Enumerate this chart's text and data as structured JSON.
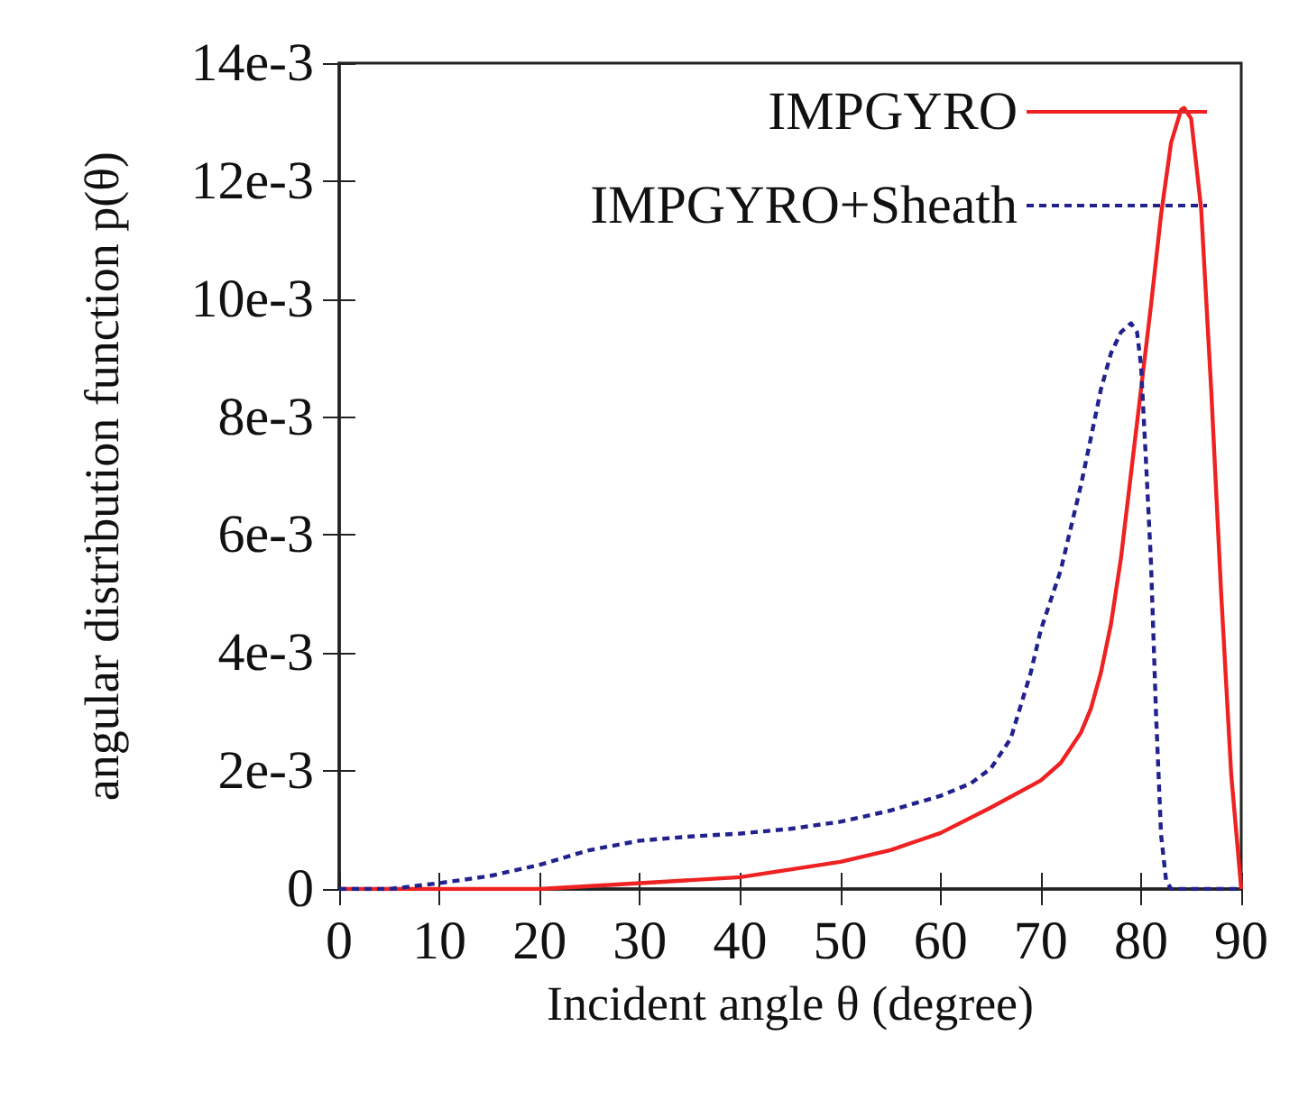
{
  "chart_data": {
    "type": "line",
    "xlabel": "Incident angle θ (degree)",
    "ylabel": "angular distribution function p(θ)",
    "xlim": [
      0,
      90
    ],
    "xticks": [
      0,
      10,
      20,
      30,
      40,
      50,
      60,
      70,
      80,
      90
    ],
    "ylim": [
      0,
      0.014
    ],
    "yticks": [
      0,
      {
        "value": 0.002,
        "label": "2e-3"
      },
      {
        "value": 0.004,
        "label": "4e-3"
      },
      {
        "value": 0.006,
        "label": "6e-3"
      },
      {
        "value": 0.008,
        "label": "8e-3"
      },
      {
        "value": 0.01,
        "label": "10e-3"
      },
      {
        "value": 0.012,
        "label": "12e-3"
      },
      {
        "value": 0.014,
        "label": "14e-3"
      }
    ],
    "grid": false,
    "legend": "top right",
    "marker": "none",
    "series": [
      {
        "name": "IMPGYRO",
        "color": "#ee2222",
        "line_style": "solid",
        "x": [
          0,
          20,
          30,
          40,
          50,
          55,
          60,
          65,
          70,
          72,
          74,
          75,
          76,
          77,
          78,
          79,
          80,
          81,
          82,
          83,
          84,
          84.3,
          85,
          86,
          87,
          88,
          89,
          90
        ],
        "values": [
          0,
          0,
          0.0001,
          0.0002,
          0.00046,
          0.00066,
          0.00095,
          0.00138,
          0.00184,
          0.00214,
          0.00265,
          0.00306,
          0.00367,
          0.00449,
          0.00561,
          0.00704,
          0.00847,
          0.0099,
          0.01143,
          0.01265,
          0.01321,
          0.01324,
          0.01306,
          0.01153,
          0.00847,
          0.005,
          0.00194,
          0
        ]
      },
      {
        "name": "IMPGYRO+Sheath",
        "color": "#22228e",
        "line_style": "dashed",
        "x": [
          0,
          5,
          10,
          15,
          20,
          25,
          30,
          35,
          40,
          45,
          50,
          55,
          60,
          63,
          65,
          67,
          69,
          70,
          72,
          74,
          75,
          76,
          77,
          78,
          79,
          79.6,
          80,
          80.5,
          81,
          81.5,
          82,
          82.5,
          83,
          90
        ],
        "values": [
          0,
          0,
          0.0001,
          0.00022,
          0.00041,
          0.00066,
          0.00082,
          0.00089,
          0.00094,
          0.00102,
          0.00114,
          0.00133,
          0.00158,
          0.00179,
          0.00204,
          0.00255,
          0.00367,
          0.00439,
          0.00541,
          0.00684,
          0.00765,
          0.00847,
          0.00908,
          0.00944,
          0.00959,
          0.00944,
          0.00888,
          0.00724,
          0.00551,
          0.00296,
          0.00092,
          0.00015,
          0,
          0
        ]
      }
    ]
  }
}
